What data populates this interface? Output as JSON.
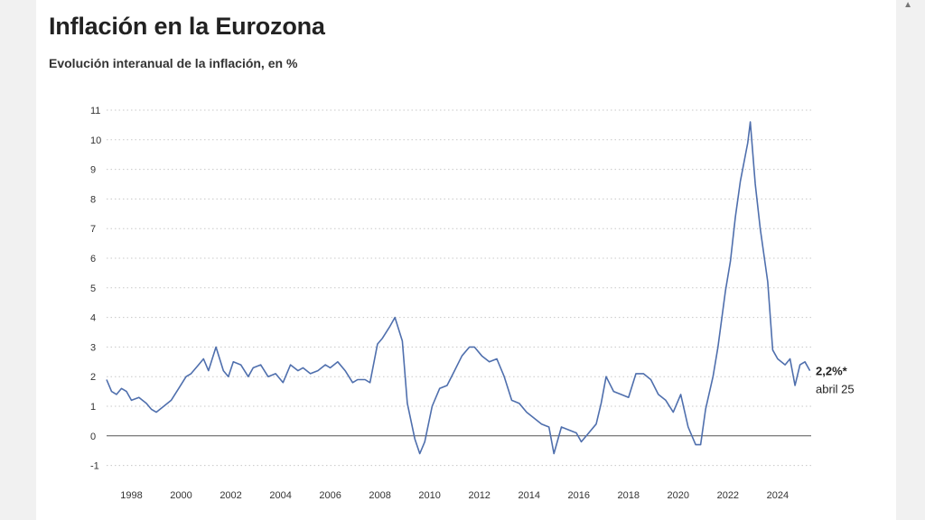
{
  "chart_data": {
    "type": "line",
    "title": "Inflación en la Eurozona",
    "subtitle": "Evolución interanual de la inflación, en %",
    "xlabel": "",
    "ylabel": "",
    "ylim": [
      -1,
      11
    ],
    "xlim": [
      1997,
      2025.35
    ],
    "grid": "horizontal-dotted",
    "y_ticks": [
      "-1",
      "0",
      "1",
      "2",
      "3",
      "4",
      "5",
      "6",
      "7",
      "8",
      "9",
      "10",
      "11"
    ],
    "x_ticks": [
      "1998",
      "2000",
      "2002",
      "2004",
      "2006",
      "2008",
      "2010",
      "2012",
      "2014",
      "2016",
      "2018",
      "2020",
      "2022",
      "2024"
    ],
    "line_color": "#4f6fad",
    "series": [
      {
        "name": "",
        "x": [
          1997.0,
          1997.2,
          1997.4,
          1997.6,
          1997.8,
          1998.0,
          1998.3,
          1998.6,
          1998.8,
          1999.0,
          1999.3,
          1999.6,
          1999.9,
          2000.2,
          2000.4,
          2000.7,
          2000.9,
          2001.1,
          2001.4,
          2001.7,
          2001.9,
          2002.1,
          2002.4,
          2002.7,
          2002.9,
          2003.2,
          2003.5,
          2003.8,
          2004.1,
          2004.4,
          2004.7,
          2004.9,
          2005.2,
          2005.5,
          2005.8,
          2006.0,
          2006.3,
          2006.6,
          2006.9,
          2007.1,
          2007.4,
          2007.6,
          2007.9,
          2008.1,
          2008.4,
          2008.6,
          2008.9,
          2009.1,
          2009.4,
          2009.6,
          2009.8,
          2010.1,
          2010.4,
          2010.7,
          2011.0,
          2011.3,
          2011.6,
          2011.8,
          2012.1,
          2012.4,
          2012.7,
          2013.0,
          2013.3,
          2013.6,
          2013.9,
          2014.2,
          2014.5,
          2014.8,
          2015.0,
          2015.3,
          2015.6,
          2015.9,
          2016.1,
          2016.4,
          2016.7,
          2016.9,
          2017.1,
          2017.4,
          2017.7,
          2018.0,
          2018.3,
          2018.6,
          2018.9,
          2019.2,
          2019.5,
          2019.8,
          2020.1,
          2020.4,
          2020.7,
          2020.9,
          2021.1,
          2021.4,
          2021.6,
          2021.9,
          2022.1,
          2022.3,
          2022.5,
          2022.8,
          2022.9,
          2023.1,
          2023.3,
          2023.6,
          2023.8,
          2024.0,
          2024.3,
          2024.5,
          2024.7,
          2024.9,
          2025.1,
          2025.3
        ],
        "values": [
          1.9,
          1.5,
          1.4,
          1.6,
          1.5,
          1.2,
          1.3,
          1.1,
          0.9,
          0.8,
          1.0,
          1.2,
          1.6,
          2.0,
          2.1,
          2.4,
          2.6,
          2.2,
          3.0,
          2.2,
          2.0,
          2.5,
          2.4,
          2.0,
          2.3,
          2.4,
          2.0,
          2.1,
          1.8,
          2.4,
          2.2,
          2.3,
          2.1,
          2.2,
          2.4,
          2.3,
          2.5,
          2.2,
          1.8,
          1.9,
          1.9,
          1.8,
          3.1,
          3.3,
          3.7,
          4.0,
          3.2,
          1.1,
          -0.1,
          -0.6,
          -0.2,
          1.0,
          1.6,
          1.7,
          2.2,
          2.7,
          3.0,
          3.0,
          2.7,
          2.5,
          2.6,
          2.0,
          1.2,
          1.1,
          0.8,
          0.6,
          0.4,
          0.3,
          -0.6,
          0.3,
          0.2,
          0.1,
          -0.2,
          0.1,
          0.4,
          1.1,
          2.0,
          1.5,
          1.4,
          1.3,
          2.1,
          2.1,
          1.9,
          1.4,
          1.2,
          0.8,
          1.4,
          0.3,
          -0.3,
          -0.3,
          0.9,
          2.0,
          3.0,
          4.9,
          5.9,
          7.4,
          8.6,
          9.9,
          10.6,
          8.5,
          7.0,
          5.2,
          2.9,
          2.6,
          2.4,
          2.6,
          1.7,
          2.4,
          2.5,
          2.2
        ]
      }
    ],
    "annotation": {
      "value_label": "2,2%*",
      "date_label": "abril 25"
    }
  }
}
